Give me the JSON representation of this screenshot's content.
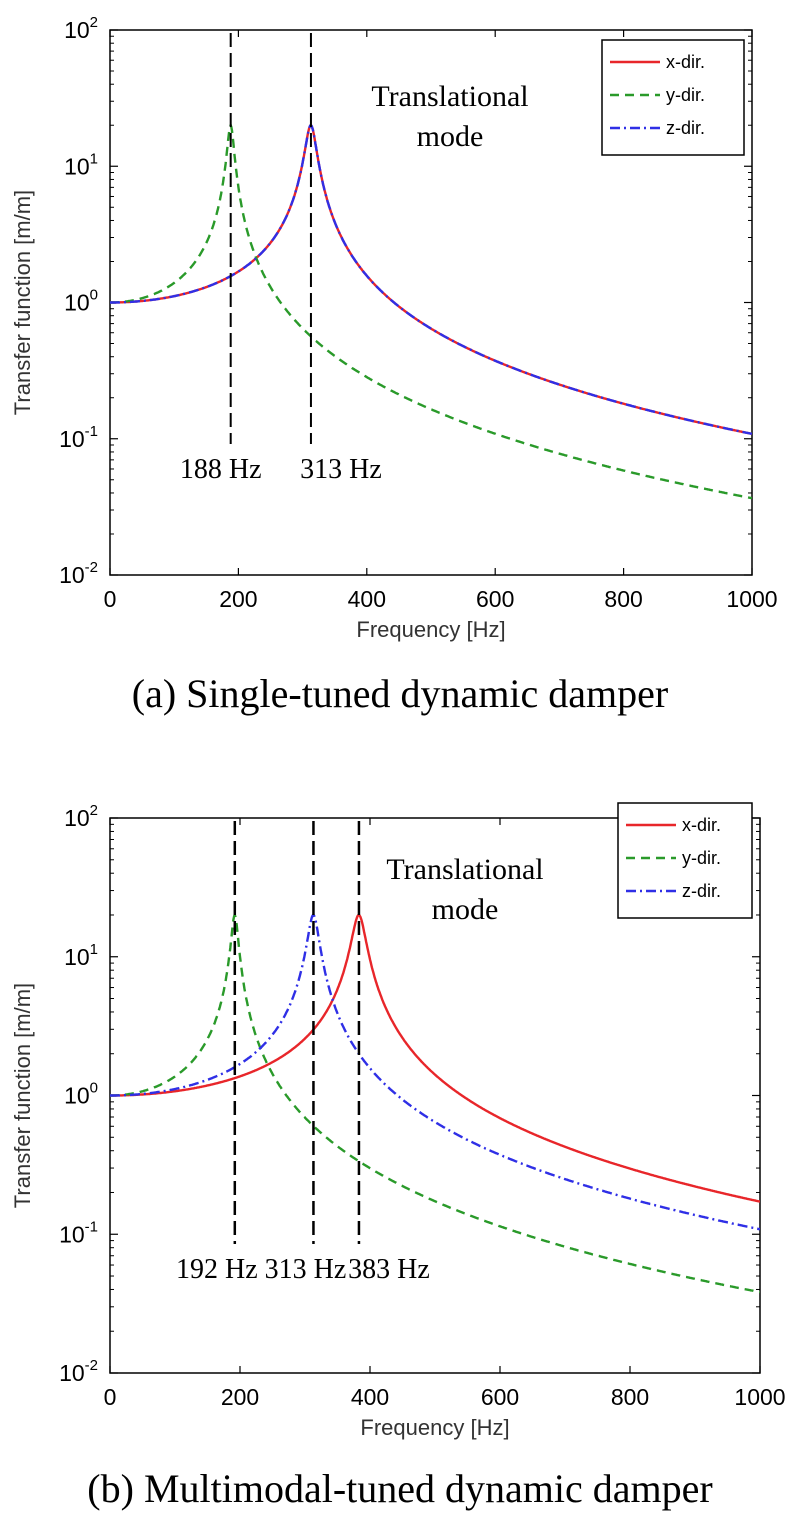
{
  "captions": {
    "a": "(a)  Single-tuned  dynamic  damper",
    "b": "(b)  Multimodal-tuned  dynamic  damper"
  },
  "colors": {
    "x": "#e8262a",
    "y": "#2a9a2a",
    "z": "#2f2fe6",
    "marker": "#000000"
  },
  "chart_data": [
    {
      "type": "line",
      "title": "",
      "xlabel": "Frequency [Hz]",
      "ylabel": "Transfer function [m/m]",
      "xlim": [
        0,
        1000
      ],
      "ylim": [
        0.01,
        100
      ],
      "yscale": "log",
      "xticks": [
        0,
        200,
        400,
        600,
        800,
        1000
      ],
      "yticks": [
        0.01,
        0.1,
        1,
        10,
        100
      ],
      "ytick_bases": [
        "10",
        "10",
        "10",
        "10",
        "10"
      ],
      "ytick_exps": [
        "-2",
        "-1",
        "0",
        "1",
        "2"
      ],
      "grid": false,
      "legend_position": "top-right",
      "annotation": [
        "Translational",
        "mode"
      ],
      "markers": [
        {
          "x": 188,
          "label": "188 Hz"
        },
        {
          "x": 313,
          "label": "313 Hz"
        }
      ],
      "series": [
        {
          "name": "x-dir.",
          "style": "solid",
          "zeta": 0.025,
          "x": [
            0,
            50,
            100,
            150,
            200,
            250,
            280,
            300,
            313,
            330,
            350,
            400,
            500,
            600,
            700,
            800,
            900,
            1000
          ],
          "values": [
            1.0,
            1.03,
            1.11,
            1.3,
            1.7,
            2.8,
            5.2,
            11,
            20,
            8.6,
            3.7,
            1.6,
            0.63,
            0.37,
            0.25,
            0.18,
            0.14,
            0.11
          ]
        },
        {
          "name": "y-dir.",
          "style": "dashed",
          "zeta": 0.025,
          "x": [
            0,
            50,
            100,
            150,
            170,
            188,
            200,
            220,
            250,
            300,
            400,
            500,
            600,
            700,
            800,
            900,
            1000
          ],
          "values": [
            1.0,
            1.08,
            1.4,
            2.8,
            5.4,
            18,
            8.9,
            3.2,
            1.3,
            0.62,
            0.28,
            0.16,
            0.11,
            0.081,
            0.063,
            0.05,
            0.041
          ]
        },
        {
          "name": "z-dir.",
          "style": "dashdot",
          "zeta": 0.025,
          "x": [
            0,
            50,
            100,
            150,
            200,
            250,
            280,
            300,
            313,
            330,
            350,
            400,
            500,
            600,
            700,
            800,
            900,
            1000
          ],
          "values": [
            1.0,
            1.03,
            1.11,
            1.3,
            1.7,
            2.8,
            5.2,
            11,
            20,
            8.6,
            3.7,
            1.6,
            0.63,
            0.37,
            0.25,
            0.18,
            0.14,
            0.11
          ]
        }
      ]
    },
    {
      "type": "line",
      "title": "",
      "xlabel": "Frequency [Hz]",
      "ylabel": "Transfer function [m/m]",
      "xlim": [
        0,
        1000
      ],
      "ylim": [
        0.01,
        100
      ],
      "yscale": "log",
      "xticks": [
        0,
        200,
        400,
        600,
        800,
        1000
      ],
      "yticks": [
        0.01,
        0.1,
        1,
        10,
        100
      ],
      "ytick_bases": [
        "10",
        "10",
        "10",
        "10",
        "10"
      ],
      "ytick_exps": [
        "-2",
        "-1",
        "0",
        "1",
        "2"
      ],
      "grid": false,
      "legend_position": "top-right",
      "annotation": [
        "Translational",
        "mode"
      ],
      "markers": [
        {
          "x": 192,
          "label": "192 Hz"
        },
        {
          "x": 313,
          "label": "313 Hz"
        },
        {
          "x": 383,
          "label": "383 Hz"
        }
      ],
      "series": [
        {
          "name": "x-dir.",
          "style": "solid",
          "zeta": 0.025,
          "x": [
            0,
            100,
            200,
            250,
            300,
            350,
            383,
            400,
            450,
            500,
            600,
            700,
            800,
            900,
            1000
          ],
          "values": [
            1.0,
            1.07,
            1.37,
            1.74,
            2.6,
            5.6,
            20,
            9.2,
            2.4,
            1.4,
            0.69,
            0.43,
            0.3,
            0.23,
            0.17
          ]
        },
        {
          "name": "y-dir.",
          "style": "dashed",
          "zeta": 0.025,
          "x": [
            0,
            50,
            100,
            150,
            170,
            192,
            210,
            230,
            250,
            300,
            400,
            500,
            600,
            700,
            800,
            900,
            1000
          ],
          "values": [
            1.0,
            1.07,
            1.37,
            2.6,
            4.4,
            20,
            6.3,
            2.6,
            1.5,
            0.7,
            0.3,
            0.17,
            0.11,
            0.081,
            0.063,
            0.05,
            0.041
          ]
        },
        {
          "name": "z-dir.",
          "style": "dashdot",
          "zeta": 0.025,
          "x": [
            0,
            100,
            150,
            200,
            250,
            280,
            300,
            313,
            330,
            350,
            400,
            500,
            600,
            700,
            800,
            900,
            1000
          ],
          "values": [
            1.0,
            1.11,
            1.3,
            1.7,
            2.7,
            5.0,
            10,
            20,
            8.6,
            3.7,
            1.6,
            0.63,
            0.37,
            0.25,
            0.18,
            0.14,
            0.11
          ]
        }
      ]
    }
  ]
}
